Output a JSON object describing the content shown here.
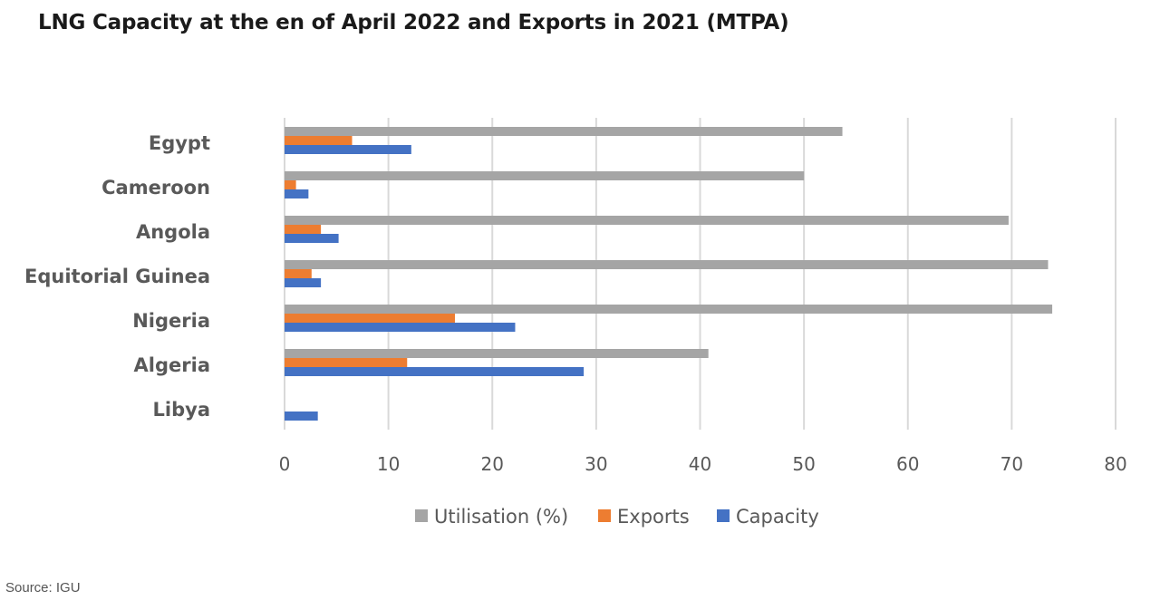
{
  "title": "LNG Capacity at the en of April 2022 and Exports in 2021 (MTPA)",
  "source": "Source: IGU",
  "colors": {
    "utilisation": "#a5a5a5",
    "exports": "#ed7d31",
    "capacity": "#4472c4",
    "grid": "#d9d9d9",
    "text": "#595959"
  },
  "chart_data": {
    "type": "bar",
    "orientation": "horizontal",
    "categories": [
      "Egypt",
      "Cameroon",
      "Angola",
      "Equitorial Guinea",
      "Nigeria",
      "Algeria",
      "Libya"
    ],
    "series": [
      {
        "name": "Utilisation (%)",
        "values": [
          53.7,
          50,
          69.7,
          73.5,
          73.9,
          40.8,
          0
        ]
      },
      {
        "name": "Exports",
        "values": [
          6.5,
          1.1,
          3.5,
          2.6,
          16.4,
          11.8,
          0
        ]
      },
      {
        "name": "Capacity",
        "values": [
          12.2,
          2.3,
          5.2,
          3.5,
          22.2,
          28.8,
          3.2
        ]
      }
    ],
    "xlim": [
      0,
      80
    ],
    "xticks": [
      "0",
      "10",
      "20",
      "30",
      "40",
      "50",
      "60",
      "70",
      "80"
    ],
    "grid": true,
    "legend": "bottom"
  }
}
